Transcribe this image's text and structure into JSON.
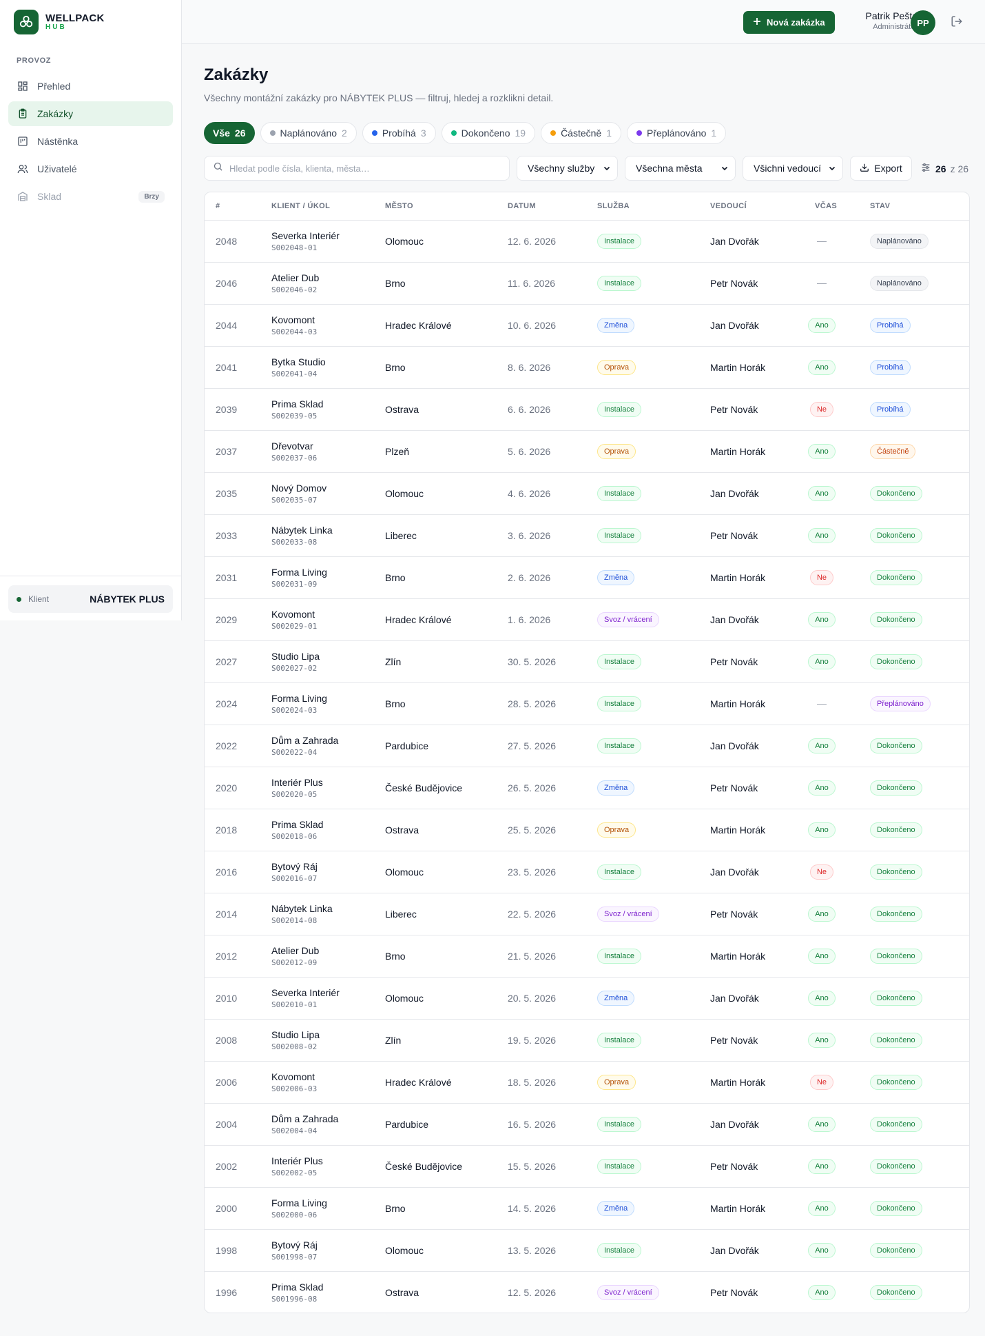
{
  "brand": {
    "name": "WELLPACK",
    "sub": "HUB"
  },
  "sidebar": {
    "section": "PROVOZ",
    "items": [
      {
        "label": "Přehled",
        "icon": "grid-icon",
        "state": "normal"
      },
      {
        "label": "Zakázky",
        "icon": "clipboard-icon",
        "state": "active"
      },
      {
        "label": "Nástěnka",
        "icon": "board-icon",
        "state": "normal"
      },
      {
        "label": "Uživatelé",
        "icon": "users-icon",
        "state": "normal"
      },
      {
        "label": "Sklad",
        "icon": "warehouse-icon",
        "state": "disabled",
        "badge": "Brzy"
      }
    ],
    "client_label": "Klient",
    "client_name": "NÁBYTEK PLUS"
  },
  "topbar": {
    "new_button": "Nová zakázka",
    "user_name": "Patrik Pešta",
    "user_role": "Administrátor",
    "avatar": "PP"
  },
  "page": {
    "title": "Zakázky",
    "subtitle": "Všechny montážní zakázky pro NÁBYTEK PLUS — filtruj, hledej a rozklikni detail."
  },
  "chips": [
    {
      "label": "Vše",
      "count": "26",
      "dot": "",
      "active": true
    },
    {
      "label": "Naplánováno",
      "count": "2",
      "dot": "#9ca3af"
    },
    {
      "label": "Probíhá",
      "count": "3",
      "dot": "#2563eb"
    },
    {
      "label": "Dokončeno",
      "count": "19",
      "dot": "#10b981"
    },
    {
      "label": "Částečně",
      "count": "1",
      "dot": "#f59e0b"
    },
    {
      "label": "Přeplánováno",
      "count": "1",
      "dot": "#7c3aed"
    }
  ],
  "filters": {
    "search_placeholder": "Hledat podle čísla, klienta, města…",
    "service_select": "Všechny služby",
    "city_select": "Všechna města",
    "lead_select": "Všichni vedoucí",
    "export": "Export",
    "count_shown": "26",
    "count_total": "z 26"
  },
  "table": {
    "headers": [
      "#",
      "KLIENT / ÚKOL",
      "MĚSTO",
      "DATUM",
      "SLUŽBA",
      "VEDOUCÍ",
      "VČAS",
      "STAV"
    ],
    "rows": [
      {
        "num": "2048",
        "client": "Severka Interiér",
        "code": "S002048-01",
        "city": "Olomouc",
        "date": "12. 6. 2026",
        "service": "Instalace",
        "lead": "Jan Dvořák",
        "ontime": "—",
        "status": "Naplánováno"
      },
      {
        "num": "2046",
        "client": "Atelier Dub",
        "code": "S002046-02",
        "city": "Brno",
        "date": "11. 6. 2026",
        "service": "Instalace",
        "lead": "Petr Novák",
        "ontime": "—",
        "status": "Naplánováno"
      },
      {
        "num": "2044",
        "client": "Kovomont",
        "code": "S002044-03",
        "city": "Hradec Králové",
        "date": "10. 6. 2026",
        "service": "Změna",
        "lead": "Jan Dvořák",
        "ontime": "Ano",
        "status": "Probíhá"
      },
      {
        "num": "2041",
        "client": "Bytka Studio",
        "code": "S002041-04",
        "city": "Brno",
        "date": "8. 6. 2026",
        "service": "Oprava",
        "lead": "Martin Horák",
        "ontime": "Ano",
        "status": "Probíhá"
      },
      {
        "num": "2039",
        "client": "Prima Sklad",
        "code": "S002039-05",
        "city": "Ostrava",
        "date": "6. 6. 2026",
        "service": "Instalace",
        "lead": "Petr Novák",
        "ontime": "Ne",
        "status": "Probíhá"
      },
      {
        "num": "2037",
        "client": "Dřevotvar",
        "code": "S002037-06",
        "city": "Plzeň",
        "date": "5. 6. 2026",
        "service": "Oprava",
        "lead": "Martin Horák",
        "ontime": "Ano",
        "status": "Částečně"
      },
      {
        "num": "2035",
        "client": "Nový Domov",
        "code": "S002035-07",
        "city": "Olomouc",
        "date": "4. 6. 2026",
        "service": "Instalace",
        "lead": "Jan Dvořák",
        "ontime": "Ano",
        "status": "Dokončeno"
      },
      {
        "num": "2033",
        "client": "Nábytek Linka",
        "code": "S002033-08",
        "city": "Liberec",
        "date": "3. 6. 2026",
        "service": "Instalace",
        "lead": "Petr Novák",
        "ontime": "Ano",
        "status": "Dokončeno"
      },
      {
        "num": "2031",
        "client": "Forma Living",
        "code": "S002031-09",
        "city": "Brno",
        "date": "2. 6. 2026",
        "service": "Změna",
        "lead": "Martin Horák",
        "ontime": "Ne",
        "status": "Dokončeno"
      },
      {
        "num": "2029",
        "client": "Kovomont",
        "code": "S002029-01",
        "city": "Hradec Králové",
        "date": "1. 6. 2026",
        "service": "Svoz / vrácení",
        "lead": "Jan Dvořák",
        "ontime": "Ano",
        "status": "Dokončeno"
      },
      {
        "num": "2027",
        "client": "Studio Lipa",
        "code": "S002027-02",
        "city": "Zlín",
        "date": "30. 5. 2026",
        "service": "Instalace",
        "lead": "Petr Novák",
        "ontime": "Ano",
        "status": "Dokončeno"
      },
      {
        "num": "2024",
        "client": "Forma Living",
        "code": "S002024-03",
        "city": "Brno",
        "date": "28. 5. 2026",
        "service": "Instalace",
        "lead": "Martin Horák",
        "ontime": "—",
        "status": "Přeplánováno"
      },
      {
        "num": "2022",
        "client": "Dům a Zahrada",
        "code": "S002022-04",
        "city": "Pardubice",
        "date": "27. 5. 2026",
        "service": "Instalace",
        "lead": "Jan Dvořák",
        "ontime": "Ano",
        "status": "Dokončeno"
      },
      {
        "num": "2020",
        "client": "Interiér Plus",
        "code": "S002020-05",
        "city": "České Budějovice",
        "date": "26. 5. 2026",
        "service": "Změna",
        "lead": "Petr Novák",
        "ontime": "Ano",
        "status": "Dokončeno"
      },
      {
        "num": "2018",
        "client": "Prima Sklad",
        "code": "S002018-06",
        "city": "Ostrava",
        "date": "25. 5. 2026",
        "service": "Oprava",
        "lead": "Martin Horák",
        "ontime": "Ano",
        "status": "Dokončeno"
      },
      {
        "num": "2016",
        "client": "Bytový Ráj",
        "code": "S002016-07",
        "city": "Olomouc",
        "date": "23. 5. 2026",
        "service": "Instalace",
        "lead": "Jan Dvořák",
        "ontime": "Ne",
        "status": "Dokončeno"
      },
      {
        "num": "2014",
        "client": "Nábytek Linka",
        "code": "S002014-08",
        "city": "Liberec",
        "date": "22. 5. 2026",
        "service": "Svoz / vrácení",
        "lead": "Petr Novák",
        "ontime": "Ano",
        "status": "Dokončeno"
      },
      {
        "num": "2012",
        "client": "Atelier Dub",
        "code": "S002012-09",
        "city": "Brno",
        "date": "21. 5. 2026",
        "service": "Instalace",
        "lead": "Martin Horák",
        "ontime": "Ano",
        "status": "Dokončeno"
      },
      {
        "num": "2010",
        "client": "Severka Interiér",
        "code": "S002010-01",
        "city": "Olomouc",
        "date": "20. 5. 2026",
        "service": "Změna",
        "lead": "Jan Dvořák",
        "ontime": "Ano",
        "status": "Dokončeno"
      },
      {
        "num": "2008",
        "client": "Studio Lipa",
        "code": "S002008-02",
        "city": "Zlín",
        "date": "19. 5. 2026",
        "service": "Instalace",
        "lead": "Petr Novák",
        "ontime": "Ano",
        "status": "Dokončeno"
      },
      {
        "num": "2006",
        "client": "Kovomont",
        "code": "S002006-03",
        "city": "Hradec Králové",
        "date": "18. 5. 2026",
        "service": "Oprava",
        "lead": "Martin Horák",
        "ontime": "Ne",
        "status": "Dokončeno"
      },
      {
        "num": "2004",
        "client": "Dům a Zahrada",
        "code": "S002004-04",
        "city": "Pardubice",
        "date": "16. 5. 2026",
        "service": "Instalace",
        "lead": "Jan Dvořák",
        "ontime": "Ano",
        "status": "Dokončeno"
      },
      {
        "num": "2002",
        "client": "Interiér Plus",
        "code": "S002002-05",
        "city": "České Budějovice",
        "date": "15. 5. 2026",
        "service": "Instalace",
        "lead": "Petr Novák",
        "ontime": "Ano",
        "status": "Dokončeno"
      },
      {
        "num": "2000",
        "client": "Forma Living",
        "code": "S002000-06",
        "city": "Brno",
        "date": "14. 5. 2026",
        "service": "Změna",
        "lead": "Martin Horák",
        "ontime": "Ano",
        "status": "Dokončeno"
      },
      {
        "num": "1998",
        "client": "Bytový Ráj",
        "code": "S001998-07",
        "city": "Olomouc",
        "date": "13. 5. 2026",
        "service": "Instalace",
        "lead": "Jan Dvořák",
        "ontime": "Ano",
        "status": "Dokončeno"
      },
      {
        "num": "1996",
        "client": "Prima Sklad",
        "code": "S001996-08",
        "city": "Ostrava",
        "date": "12. 5. 2026",
        "service": "Svoz / vrácení",
        "lead": "Petr Novák",
        "ontime": "Ano",
        "status": "Dokončeno"
      }
    ]
  },
  "colors": {
    "brand": "#166534",
    "service": {
      "Instalace": {
        "fg": "#15803d",
        "bg": "#f0fdf4",
        "bd": "#bbf7d0"
      },
      "Změna": {
        "fg": "#1d4ed8",
        "bg": "#eff6ff",
        "bd": "#bfdbfe"
      },
      "Oprava": {
        "fg": "#b45309",
        "bg": "#fffbeb",
        "bd": "#fde68a"
      },
      "Svoz / vrácení": {
        "fg": "#7e22ce",
        "bg": "#faf5ff",
        "bd": "#e9d5ff"
      }
    },
    "ontime": {
      "Ano": {
        "fg": "#15803d",
        "bg": "#f0fdf4",
        "bd": "#bbf7d0"
      },
      "Ne": {
        "fg": "#dc2626",
        "bg": "#fef2f2",
        "bd": "#fecaca"
      }
    },
    "status": {
      "Naplánováno": {
        "fg": "#374151",
        "bg": "#f3f4f6",
        "bd": "#e5e7eb"
      },
      "Probíhá": {
        "fg": "#1d4ed8",
        "bg": "#eff6ff",
        "bd": "#bfdbfe"
      },
      "Částečně": {
        "fg": "#c2410c",
        "bg": "#fff7ed",
        "bd": "#fed7aa"
      },
      "Dokončeno": {
        "fg": "#15803d",
        "bg": "#f0fdf4",
        "bd": "#bbf7d0"
      },
      "Přeplánováno": {
        "fg": "#7e22ce",
        "bg": "#faf5ff",
        "bd": "#e9d5ff"
      }
    }
  }
}
